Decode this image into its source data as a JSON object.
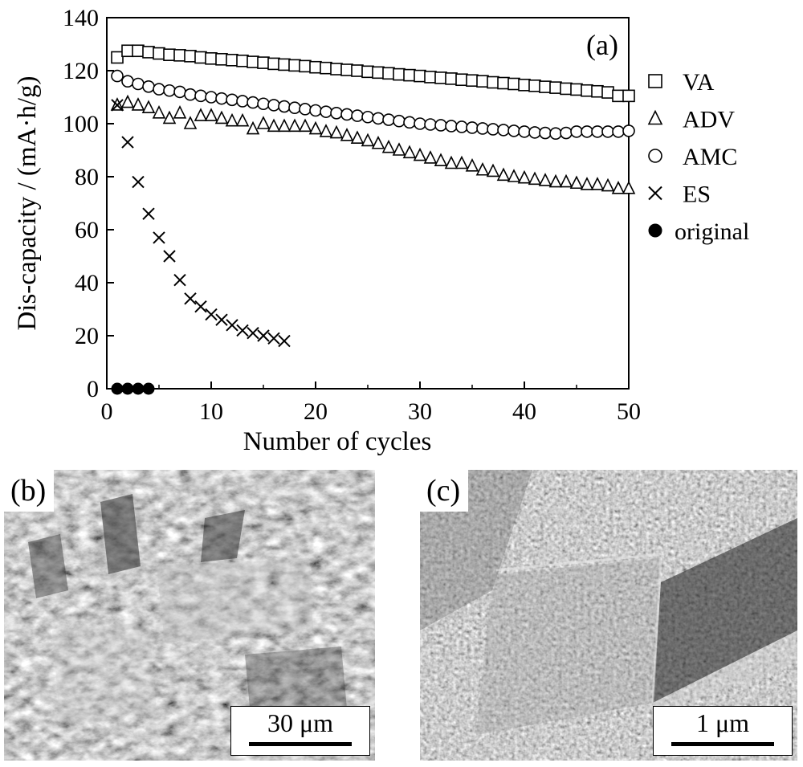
{
  "chart_data": {
    "type": "scatter",
    "panel_label": "(a)",
    "xlabel": "Number of cycles",
    "ylabel": "Dis-capacity / (mA·h/g)",
    "xlim": [
      0,
      50
    ],
    "ylim": [
      0,
      140
    ],
    "xticks": [
      "0",
      "10",
      "20",
      "30",
      "40",
      "50"
    ],
    "yticks": [
      "0",
      "20",
      "40",
      "60",
      "80",
      "100",
      "120",
      "140"
    ],
    "grid": false,
    "legend_position": "right",
    "series": [
      {
        "name": "VA",
        "marker": "square",
        "x": [
          1,
          2,
          3,
          4,
          5,
          6,
          7,
          8,
          9,
          10,
          11,
          12,
          13,
          14,
          15,
          16,
          17,
          18,
          19,
          20,
          21,
          22,
          23,
          24,
          25,
          26,
          27,
          28,
          29,
          30,
          31,
          32,
          33,
          34,
          35,
          36,
          37,
          38,
          39,
          40,
          41,
          42,
          43,
          44,
          45,
          46,
          47,
          48,
          49,
          50
        ],
        "y": [
          125,
          127.5,
          127.5,
          127,
          126.5,
          126,
          125.8,
          125.5,
          125,
          124.6,
          124.3,
          124,
          123.7,
          123.3,
          123,
          122.6,
          122.3,
          122,
          121.7,
          121.3,
          121,
          120.6,
          120.3,
          120,
          119.6,
          119.3,
          119,
          118.6,
          118.3,
          118,
          117.6,
          117.3,
          117,
          116.6,
          116.3,
          116,
          115.6,
          115.3,
          115,
          114.6,
          114.3,
          113.9,
          113.6,
          113.2,
          112.9,
          112.5,
          112.2,
          111.8,
          110.5,
          110.5
        ]
      },
      {
        "name": "ADV",
        "marker": "triangle",
        "x": [
          1,
          2,
          3,
          4,
          5,
          6,
          7,
          8,
          9,
          10,
          11,
          12,
          13,
          14,
          15,
          16,
          17,
          18,
          19,
          20,
          21,
          22,
          23,
          24,
          25,
          26,
          27,
          28,
          29,
          30,
          31,
          32,
          33,
          34,
          35,
          36,
          37,
          38,
          39,
          40,
          41,
          42,
          43,
          44,
          45,
          46,
          47,
          48,
          49,
          50
        ],
        "y": [
          107,
          108,
          107,
          106,
          104,
          102,
          104,
          100,
          103,
          103,
          102,
          101,
          101,
          98,
          100,
          99,
          99,
          99,
          99,
          98,
          97,
          96.5,
          95.5,
          94.5,
          93.5,
          92.5,
          91,
          90,
          89,
          88,
          87,
          86,
          85,
          85,
          84,
          82.5,
          82,
          80.5,
          80,
          79.5,
          79,
          78.5,
          78,
          78,
          77.5,
          77,
          77,
          76.5,
          75.5,
          75.5
        ]
      },
      {
        "name": "AMC",
        "marker": "circle",
        "x": [
          1,
          2,
          3,
          4,
          5,
          6,
          7,
          8,
          9,
          10,
          11,
          12,
          13,
          14,
          15,
          16,
          17,
          18,
          19,
          20,
          21,
          22,
          23,
          24,
          25,
          26,
          27,
          28,
          29,
          30,
          31,
          32,
          33,
          34,
          35,
          36,
          37,
          38,
          39,
          40,
          41,
          42,
          43,
          44,
          45,
          46,
          47,
          48,
          49,
          50
        ],
        "y": [
          118,
          116,
          115,
          114,
          113,
          112.5,
          112,
          111,
          110.5,
          110,
          109.5,
          109,
          108.5,
          108,
          107.5,
          107,
          106.5,
          106,
          105.5,
          105,
          104.5,
          104,
          103.5,
          103,
          102.5,
          102,
          101.5,
          101,
          100.5,
          100,
          99.7,
          99.4,
          99.1,
          98.8,
          98.5,
          98.2,
          97.9,
          97.6,
          97.3,
          97,
          96.7,
          96.5,
          96.3,
          96.5,
          97,
          97,
          97,
          97,
          97,
          97.3
        ]
      },
      {
        "name": "ES",
        "marker": "cross",
        "x": [
          1,
          2,
          3,
          4,
          5,
          6,
          7,
          8,
          9,
          10,
          11,
          12,
          13,
          14,
          15,
          16,
          17
        ],
        "y": [
          107,
          93,
          78,
          66,
          57,
          50,
          41,
          34,
          31,
          28,
          26,
          24,
          22,
          21,
          20,
          19,
          18
        ]
      },
      {
        "name": "original",
        "marker": "filled-circle",
        "x": [
          1,
          2,
          3,
          4
        ],
        "y": [
          0,
          0,
          0,
          0
        ]
      }
    ]
  },
  "panels": {
    "b": {
      "label": "(b)",
      "scale_text": "30 μm"
    },
    "c": {
      "label": "(c)",
      "scale_text": "1 μm"
    }
  }
}
